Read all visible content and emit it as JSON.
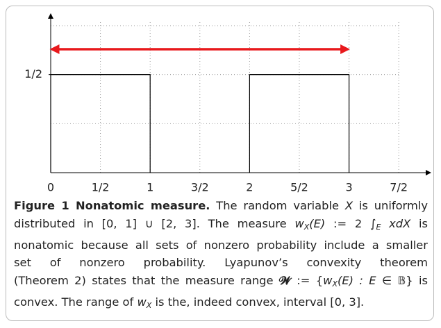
{
  "chart_data": {
    "type": "step",
    "xlim": [
      0,
      3.82
    ],
    "ylim": [
      0,
      0.81
    ],
    "xticks": [
      0,
      {
        "value": 0.5,
        "label": "1/2"
      },
      1,
      {
        "value": 1.5,
        "label": "3/2"
      },
      2,
      {
        "value": 2.5,
        "label": "5/2"
      },
      3,
      {
        "value": 3.5,
        "label": "7/2"
      }
    ],
    "yticks": [
      {
        "value": 0.5,
        "label": "1/2"
      }
    ],
    "ygrid": [
      0.25,
      0.5,
      0.75
    ],
    "grid": true,
    "series": [
      {
        "color": "#000000",
        "x": [
          0,
          0,
          1,
          1
        ],
        "values": [
          0,
          0.5,
          0.5,
          0
        ]
      },
      {
        "color": "#000000",
        "x": [
          2,
          2,
          3,
          3
        ],
        "values": [
          0,
          0.5,
          0.5,
          0
        ]
      }
    ],
    "range": {
      "color": "#e8191c",
      "values": [
        0,
        3
      ]
    }
  },
  "caption": {
    "lines": [
      [
        {
          "text": "Figure 1 Nonatomic measure.",
          "style": "b"
        },
        {
          "text": " The random variable "
        },
        {
          "text": "X",
          "style": "i"
        },
        {
          "text": " is uniformly"
        }
      ],
      [
        {
          "text": "distributed in [0, 1] ∪ [2, 3]. The measure "
        },
        {
          "text": "w",
          "style": "i"
        },
        {
          "text": "X",
          "style": "sub"
        },
        {
          "text": "(E)",
          "style": "i"
        },
        {
          "text": " := 2 ∫"
        },
        {
          "text": "E",
          "style": "sub"
        },
        {
          "text": " "
        },
        {
          "text": "xdX",
          "style": "i"
        },
        {
          "text": " is"
        }
      ],
      [
        {
          "text": "nonatomic because all sets of nonzero probability include a smaller"
        }
      ],
      [
        {
          "text": "set of nonzero probability. Lyapunov’s convexity theorem"
        }
      ],
      [
        {
          "text": "(Theorem 2) states that the measure range "
        },
        {
          "text": "𝓦",
          "style": "b"
        },
        {
          "text": " := {"
        },
        {
          "text": "w",
          "style": "i"
        },
        {
          "text": "X",
          "style": "sub"
        },
        {
          "text": "(E) : E",
          "style": "i"
        },
        {
          "text": " ∈ 𝔹} is"
        }
      ],
      [
        {
          "text": "convex. The range of "
        },
        {
          "text": "w",
          "style": "i"
        },
        {
          "text": "X",
          "style": "sub"
        },
        {
          "text": " is the, indeed convex, interval [0, 3]."
        }
      ]
    ]
  }
}
